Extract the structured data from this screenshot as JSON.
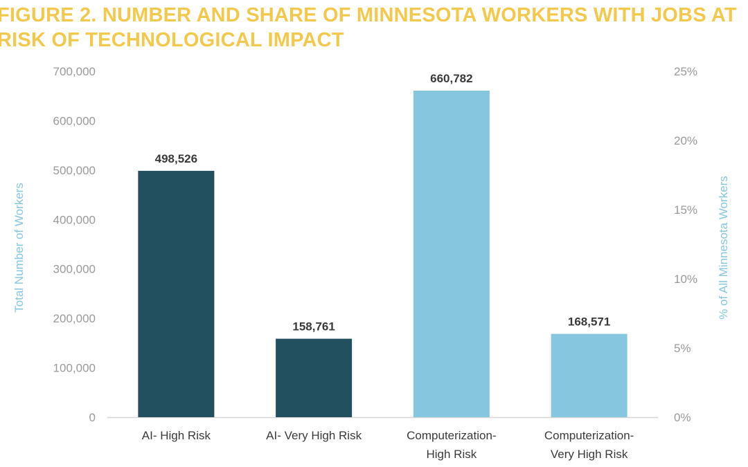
{
  "title_color": "#F2C94C",
  "chart_data": {
    "type": "bar",
    "title": "FIGURE 2. NUMBER AND SHARE OF MINNESOTA WORKERS WITH JOBS AT RISK OF TECHNOLOGICAL IMPACT",
    "categories": [
      "AI- High Risk",
      "AI- Very High Risk",
      "Computerization- High Risk",
      "Computerization- Very High Risk"
    ],
    "category_lines": [
      [
        "AI- High Risk"
      ],
      [
        "AI- Very High Risk"
      ],
      [
        "Computerization-",
        "High Risk"
      ],
      [
        "Computerization-",
        "Very High Risk"
      ]
    ],
    "values": [
      498526,
      158761,
      660782,
      168571
    ],
    "data_labels": [
      "498,526",
      "158,761",
      "660,782",
      "168,571"
    ],
    "bar_colors": [
      "#23505E",
      "#23505E",
      "#86C6DE",
      "#86C6DE"
    ],
    "ylabel": "Total Number of Workers",
    "y2label": "% of All Minnesota Workers",
    "ylim": [
      0,
      700000
    ],
    "y_ticks": [
      "0",
      "100,000",
      "200,000",
      "300,000",
      "400,000",
      "500,000",
      "600,000",
      "700,000"
    ],
    "y2lim": [
      0,
      25
    ],
    "y2_ticks": [
      "0%",
      "5%",
      "10%",
      "15%",
      "20%",
      "25%"
    ],
    "axis_label_color": "#86C6DE",
    "grid": false,
    "legend": "none"
  }
}
